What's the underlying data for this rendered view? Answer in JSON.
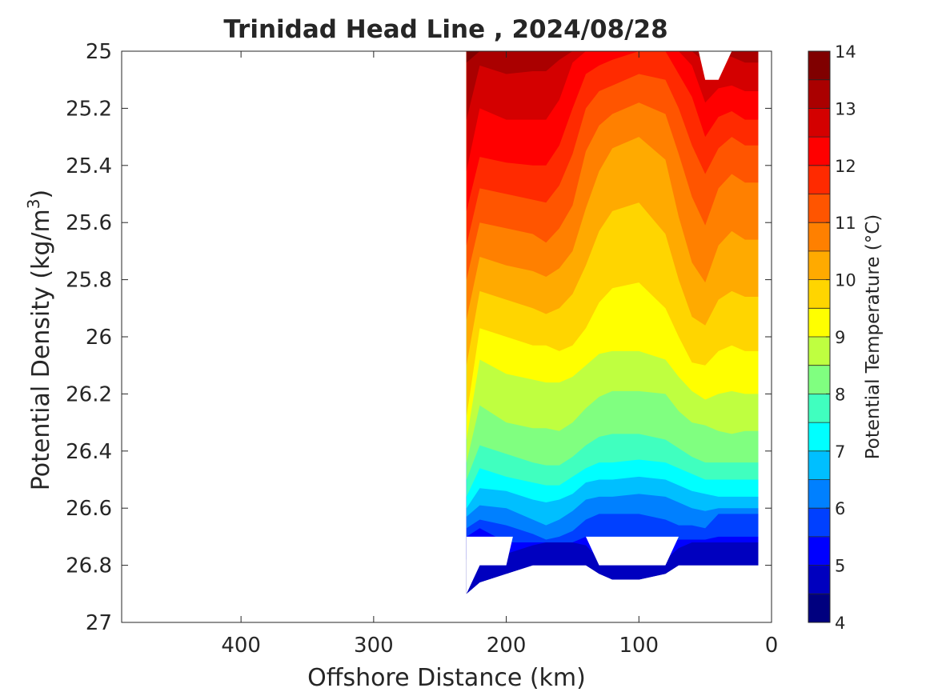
{
  "chart_data": {
    "type": "contourf",
    "title": "Trinidad Head Line , 2024/08/28",
    "xlabel": "Offshore Distance (km)",
    "ylabel_main": "Potential Density (kg/m",
    "ylabel_sup": "3",
    "ylabel_close": ")",
    "colorbar_label": "Potential Temperature (°C)",
    "xlim": [
      490,
      0
    ],
    "ylim": [
      25,
      27
    ],
    "x_reversed": true,
    "y_reversed": true,
    "x_ticks": [
      400,
      300,
      200,
      100,
      0
    ],
    "y_ticks": [
      25,
      25.2,
      25.4,
      25.6,
      25.8,
      26,
      26.2,
      26.4,
      26.6,
      26.8,
      27
    ],
    "y_tick_labels": [
      "25",
      "25.2",
      "25.4",
      "25.6",
      "25.8",
      "26",
      "26.2",
      "26.4",
      "26.6",
      "26.8",
      "27"
    ],
    "colorbar_ticks": [
      14,
      13,
      12,
      11,
      10,
      9,
      8,
      7,
      6,
      5,
      4
    ],
    "clim": [
      4,
      14
    ],
    "level_step": 0.5,
    "colormap": "jet",
    "level_colors": [
      "#00007F",
      "#0000BF",
      "#0000FF",
      "#0040FF",
      "#0080FF",
      "#00BFFF",
      "#00FFFF",
      "#40FFBF",
      "#80FF80",
      "#BFFF40",
      "#FFFF00",
      "#FFD500",
      "#FFAA00",
      "#FF8000",
      "#FF5500",
      "#FF2A00",
      "#FF0000",
      "#D40000",
      "#AA0000",
      "#800000"
    ],
    "data_extent": {
      "x_max": 230,
      "x_min": 10
    },
    "stations_x": [
      230,
      220,
      200,
      180,
      170,
      160,
      150,
      140,
      130,
      120,
      100,
      80,
      70,
      60,
      50,
      40,
      30,
      20,
      10
    ],
    "isotherm_density": {
      "4.5": [
        26.9,
        26.86,
        26.83,
        26.8,
        26.8,
        26.8,
        26.8,
        26.8,
        26.83,
        26.85,
        26.85,
        26.83,
        26.8,
        26.8,
        26.8,
        26.8,
        26.8,
        26.8,
        26.8
      ],
      "5": [
        26.78,
        26.72,
        26.76,
        26.73,
        26.72,
        26.72,
        26.72,
        26.73,
        26.78,
        26.79,
        26.79,
        26.78,
        26.74,
        26.72,
        26.72,
        26.72,
        26.72,
        26.72,
        26.72
      ],
      "5.5": [
        26.7,
        26.67,
        26.72,
        26.72,
        26.72,
        26.72,
        26.72,
        26.7,
        26.72,
        26.73,
        26.72,
        26.72,
        26.71,
        26.71,
        26.71,
        26.7,
        26.7,
        26.7,
        26.7
      ],
      "6": [
        26.67,
        26.64,
        26.66,
        26.69,
        26.71,
        26.7,
        26.68,
        26.64,
        26.62,
        26.62,
        26.62,
        26.64,
        26.66,
        26.66,
        26.67,
        26.62,
        26.62,
        26.62,
        26.62
      ],
      "6.5": [
        26.63,
        26.59,
        26.6,
        26.64,
        26.66,
        26.64,
        26.61,
        26.57,
        26.56,
        26.56,
        26.55,
        26.56,
        26.58,
        26.6,
        26.61,
        26.6,
        26.6,
        26.6,
        26.6
      ],
      "7": [
        26.6,
        26.53,
        26.54,
        26.57,
        26.58,
        26.57,
        26.55,
        26.51,
        26.5,
        26.5,
        26.49,
        26.5,
        26.52,
        26.54,
        26.55,
        26.56,
        26.56,
        26.56,
        26.56
      ],
      "7.5": [
        26.56,
        26.46,
        26.49,
        26.51,
        26.52,
        26.52,
        26.49,
        26.46,
        26.44,
        26.44,
        26.43,
        26.44,
        26.46,
        26.48,
        26.5,
        26.5,
        26.5,
        26.5,
        26.5
      ],
      "8": [
        26.5,
        26.38,
        26.41,
        26.44,
        26.45,
        26.45,
        26.42,
        26.38,
        26.35,
        26.34,
        26.34,
        26.36,
        26.39,
        26.42,
        26.44,
        26.44,
        26.44,
        26.44,
        26.44
      ],
      "8.5": [
        26.44,
        26.24,
        26.3,
        26.32,
        26.32,
        26.33,
        26.3,
        26.25,
        26.21,
        26.19,
        26.19,
        26.2,
        26.26,
        26.3,
        26.31,
        26.33,
        26.34,
        26.33,
        26.33
      ],
      "9": [
        26.36,
        26.08,
        26.13,
        26.15,
        26.16,
        26.16,
        26.14,
        26.1,
        26.06,
        26.05,
        26.05,
        26.08,
        26.14,
        26.19,
        26.22,
        26.2,
        26.19,
        26.2,
        26.2
      ],
      "9.5": [
        26.28,
        25.97,
        26.0,
        26.03,
        26.03,
        26.05,
        26.03,
        25.97,
        25.88,
        25.83,
        25.81,
        25.9,
        26.0,
        26.09,
        26.1,
        26.05,
        26.03,
        26.05,
        26.05
      ],
      "10": [
        26.1,
        25.84,
        25.87,
        25.9,
        25.92,
        25.9,
        25.85,
        25.75,
        25.63,
        25.56,
        25.53,
        25.64,
        25.8,
        25.93,
        25.96,
        25.87,
        25.84,
        25.86,
        25.86
      ],
      "10.5": [
        25.94,
        25.72,
        25.75,
        25.77,
        25.79,
        25.76,
        25.7,
        25.55,
        25.42,
        25.34,
        25.3,
        25.38,
        25.58,
        25.74,
        25.81,
        25.68,
        25.63,
        25.66,
        25.66
      ],
      "11": [
        25.8,
        25.6,
        25.62,
        25.64,
        25.67,
        25.62,
        25.54,
        25.35,
        25.26,
        25.22,
        25.18,
        25.22,
        25.36,
        25.51,
        25.61,
        25.48,
        25.43,
        25.46,
        25.46
      ],
      "11.5": [
        25.68,
        25.48,
        25.5,
        25.52,
        25.53,
        25.47,
        25.36,
        25.2,
        25.14,
        25.12,
        25.08,
        25.1,
        25.2,
        25.33,
        25.43,
        25.34,
        25.3,
        25.33,
        25.33
      ],
      "12": [
        25.56,
        25.37,
        25.39,
        25.4,
        25.4,
        25.33,
        25.2,
        25.08,
        25.05,
        25.03,
        25.0,
        25.0,
        25.08,
        25.16,
        25.3,
        25.23,
        25.21,
        25.24,
        25.24
      ],
      "12.5": [
        25.42,
        25.2,
        25.24,
        25.24,
        25.24,
        25.17,
        25.04,
        25.0,
        25.0,
        25.0,
        25.0,
        25.0,
        25.0,
        25.05,
        25.18,
        25.13,
        25.12,
        25.14,
        25.14
      ],
      "13": [
        25.24,
        25.05,
        25.08,
        25.07,
        25.07,
        25.03,
        25.0,
        25.0,
        25.0,
        25.0,
        25.0,
        25.0,
        25.0,
        25.0,
        25.04,
        25.02,
        25.02,
        25.04,
        25.04
      ],
      "13.5": [
        25.04,
        25.0,
        25.0,
        25.0,
        25.0,
        25.0,
        25.0,
        25.0,
        25.0,
        25.0,
        25.0,
        25.0,
        25.0,
        25.0,
        25.0,
        25.0,
        25.0,
        25.0,
        25.0
      ]
    },
    "masked_regions": [
      {
        "description_key": "bottom_gap_1",
        "x": [
          230,
          220,
          200,
          195,
          190,
          230
        ],
        "y": [
          26.9,
          26.8,
          26.8,
          26.7,
          26.7,
          26.7
        ]
      },
      {
        "description_key": "bottom_gap_2",
        "x": [
          150,
          140,
          130,
          80,
          70,
          50,
          150
        ],
        "y": [
          26.7,
          26.7,
          26.8,
          26.8,
          26.7,
          26.7,
          26.7
        ]
      }
    ]
  }
}
